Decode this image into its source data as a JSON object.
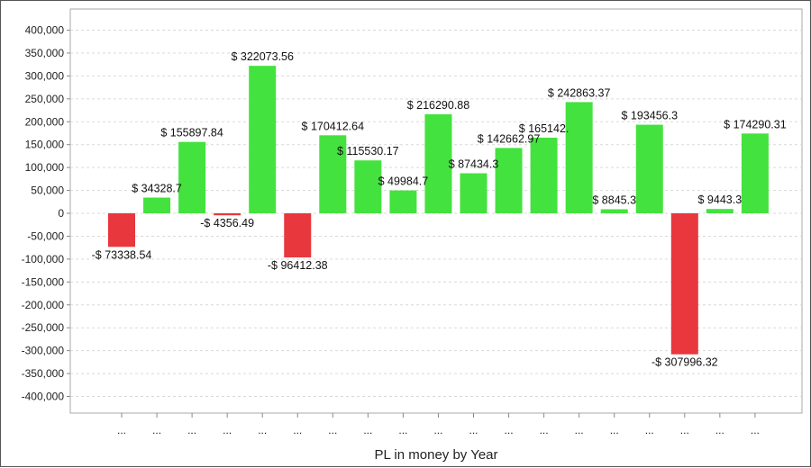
{
  "chart_data": {
    "type": "bar",
    "xlabel": "PL in money by Year",
    "ylabel": "",
    "ylim": [
      -450000,
      420000
    ],
    "yticks": [
      400000,
      350000,
      300000,
      250000,
      200000,
      150000,
      100000,
      50000,
      0,
      -50000,
      -100000,
      -150000,
      -200000,
      -250000,
      -300000,
      -350000,
      -400000
    ],
    "ytick_labels": [
      "400,000",
      "350,000",
      "300,000",
      "250,000",
      "200,000",
      "150,000",
      "100,000",
      "50,000",
      "0",
      "-50,000",
      "-100,000",
      "-150,000",
      "-200,000",
      "-250,000",
      "-300,000",
      "-350,000",
      "-400,000"
    ],
    "grid": true,
    "categories": [
      "...",
      "...",
      "...",
      "...",
      "...",
      "...",
      "...",
      "...",
      "...",
      "...",
      "...",
      "...",
      "...",
      "...",
      "...",
      "...",
      "...",
      "...",
      "..."
    ],
    "values": [
      -73338.54,
      34328.7,
      155897.84,
      -4356.49,
      322073.56,
      -96412.38,
      170412.64,
      115530.17,
      49984.7,
      216290.88,
      87434.3,
      142662.97,
      165142.0,
      242863.37,
      8845.3,
      193456.3,
      -307996.32,
      9443.3,
      174290.31
    ],
    "data_labels": [
      "-$ 73338.54",
      "$ 34328.7",
      "$ 155897.84",
      "-$ 4356.49",
      "$ 322073.56",
      "-$ 96412.38",
      "$ 170412.64",
      "$ 115530.17",
      "$ 49984.7",
      "$ 216290.88",
      "$ 87434.3",
      "$ 142662.97",
      "$ 165142.",
      "$ 242863.37",
      "$ 8845.3",
      "$ 193456.3",
      "-$ 307996.32",
      "$ 9443.3",
      "$ 174290.31"
    ],
    "colors": {
      "positive": "#44e23e",
      "negative": "#e8373d",
      "grid": "#d9d9d9",
      "axis": "#888888"
    }
  }
}
